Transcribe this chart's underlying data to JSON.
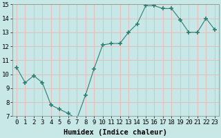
{
  "x": [
    0,
    1,
    2,
    3,
    4,
    5,
    6,
    7,
    8,
    9,
    10,
    11,
    12,
    13,
    14,
    15,
    16,
    17,
    18,
    19,
    20,
    21,
    22,
    23
  ],
  "y": [
    10.5,
    9.4,
    9.9,
    9.4,
    7.8,
    7.5,
    7.2,
    6.8,
    8.5,
    10.4,
    12.1,
    12.2,
    12.2,
    13.0,
    13.6,
    14.9,
    14.9,
    14.7,
    14.7,
    13.9,
    13.0,
    13.0,
    14.0,
    13.2
  ],
  "line_color": "#2d7d72",
  "marker": "+",
  "marker_size": 4,
  "background_color": "#c8e8e8",
  "grid_color": "#e8b8b8",
  "xlabel": "Humidex (Indice chaleur)",
  "xlim": [
    -0.5,
    23.5
  ],
  "ylim": [
    7,
    15
  ],
  "xticks": [
    0,
    1,
    2,
    3,
    4,
    5,
    6,
    7,
    8,
    9,
    10,
    11,
    12,
    13,
    14,
    15,
    16,
    17,
    18,
    19,
    20,
    21,
    22,
    23
  ],
  "yticks": [
    7,
    8,
    9,
    10,
    11,
    12,
    13,
    14,
    15
  ],
  "tick_fontsize": 6.5,
  "xlabel_fontsize": 7.5
}
